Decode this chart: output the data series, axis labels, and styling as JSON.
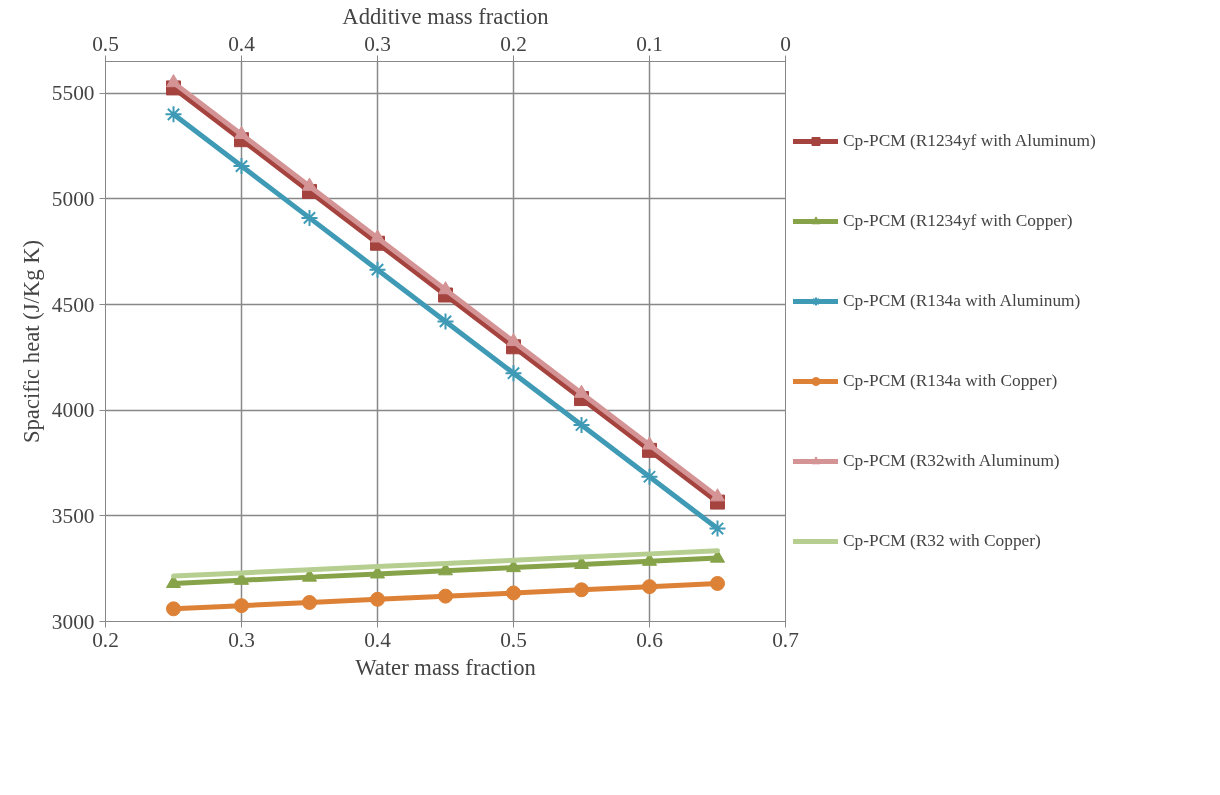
{
  "chart_data": {
    "type": "line",
    "xlabel": "Water mass fraction",
    "ylabel": "Spacific heat (J/Kg K)",
    "x2label": "Additive mass fraction",
    "x": [
      0.25,
      0.3,
      0.35,
      0.4,
      0.45,
      0.5,
      0.55,
      0.6,
      0.65
    ],
    "xlim": [
      0.2,
      0.7
    ],
    "xticks": [
      0.2,
      0.3,
      0.4,
      0.5,
      0.6,
      0.7
    ],
    "x2lim": [
      0.5,
      0
    ],
    "x2ticks": [
      0.5,
      0.4,
      0.3,
      0.2,
      0.1,
      0
    ],
    "ylim": [
      3000,
      5650
    ],
    "yticks": [
      3000,
      3500,
      4000,
      4500,
      5000,
      5500
    ],
    "grid": true,
    "legend": "right",
    "series": [
      {
        "name": "Cp-PCM (R1234yf with Aluminum)",
        "color": "#a5433f",
        "marker": "square",
        "values": [
          5525,
          5280,
          5035,
          4790,
          4545,
          4300,
          4055,
          3810,
          3565
        ]
      },
      {
        "name": "Cp-PCM (R1234yf with Copper)",
        "color": "#86a34a",
        "marker": "triangle",
        "values": [
          3180,
          3195,
          3210,
          3225,
          3240,
          3255,
          3270,
          3285,
          3300
        ]
      },
      {
        "name": "Cp-PCM (R134a with Aluminum)",
        "color": "#3f9ab5",
        "marker": "cross",
        "values": [
          5400,
          5155,
          4910,
          4665,
          4420,
          4175,
          3930,
          3685,
          3440
        ]
      },
      {
        "name": "Cp-PCM (R134a with Copper)",
        "color": "#dd8136",
        "marker": "circle",
        "values": [
          3060,
          3075,
          3090,
          3105,
          3120,
          3135,
          3150,
          3165,
          3180
        ]
      },
      {
        "name": "Cp-PCM (R32with Aluminum)",
        "color": "#d49495",
        "marker": "triangle",
        "values": [
          5550,
          5305,
          5060,
          4815,
          4570,
          4325,
          4080,
          3835,
          3590
        ]
      },
      {
        "name": "Cp-PCM (R32 with Copper)",
        "color": "#b6cf91",
        "marker": "none",
        "values": [
          3215,
          3230,
          3245,
          3260,
          3275,
          3290,
          3305,
          3320,
          3335
        ]
      }
    ]
  }
}
